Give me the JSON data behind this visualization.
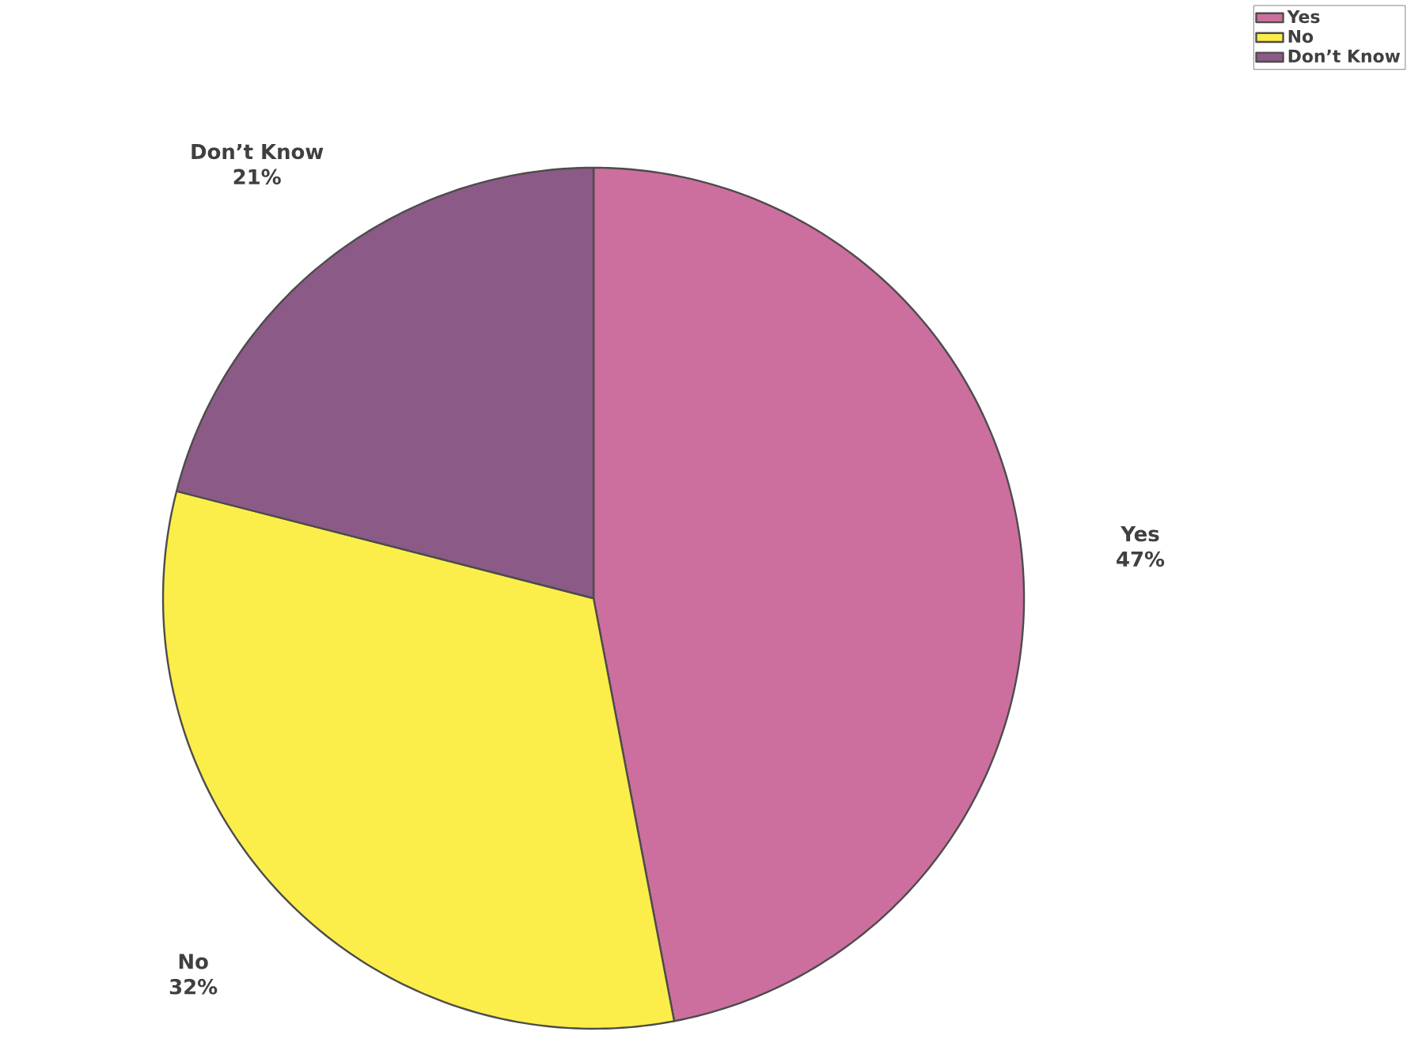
{
  "chart_data": {
    "type": "pie",
    "categories": [
      "Yes",
      "No",
      "Don’t Know"
    ],
    "values": [
      47,
      32,
      21
    ],
    "value_labels": [
      "47%",
      "32%",
      "21%"
    ],
    "colors": [
      "#cc6f9e",
      "#fcee4a",
      "#8c5a87"
    ],
    "legend": "top right"
  }
}
